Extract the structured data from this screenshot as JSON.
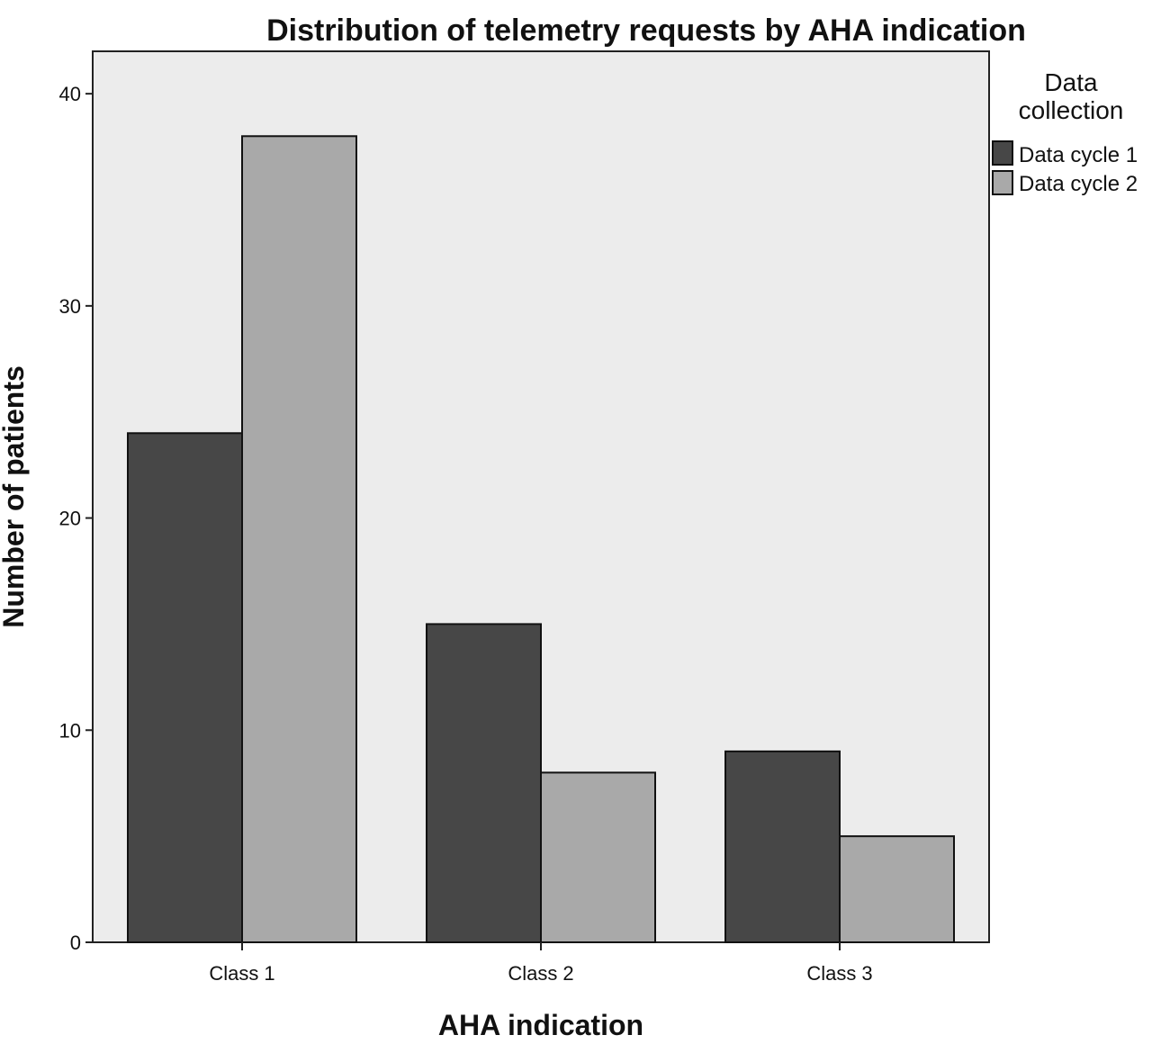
{
  "chart_data": {
    "type": "bar",
    "title": "Distribution of telemetry requests by AHA indication",
    "xlabel": "AHA indication",
    "ylabel": "Number of patients",
    "categories": [
      "Class 1",
      "Class 2",
      "Class 3"
    ],
    "series": [
      {
        "name": "Data cycle 1",
        "values": [
          24,
          15,
          9
        ],
        "color": "#474747"
      },
      {
        "name": "Data cycle 2",
        "values": [
          38,
          8,
          5
        ],
        "color": "#a9a9a9"
      }
    ],
    "ylim": [
      0,
      42
    ],
    "yticks": [
      "0",
      "10",
      "20",
      "30",
      "40"
    ],
    "grid": false,
    "plot_background": "#ececec",
    "legend": {
      "title_lines": [
        "Data",
        "collection"
      ],
      "placement": "right"
    }
  }
}
